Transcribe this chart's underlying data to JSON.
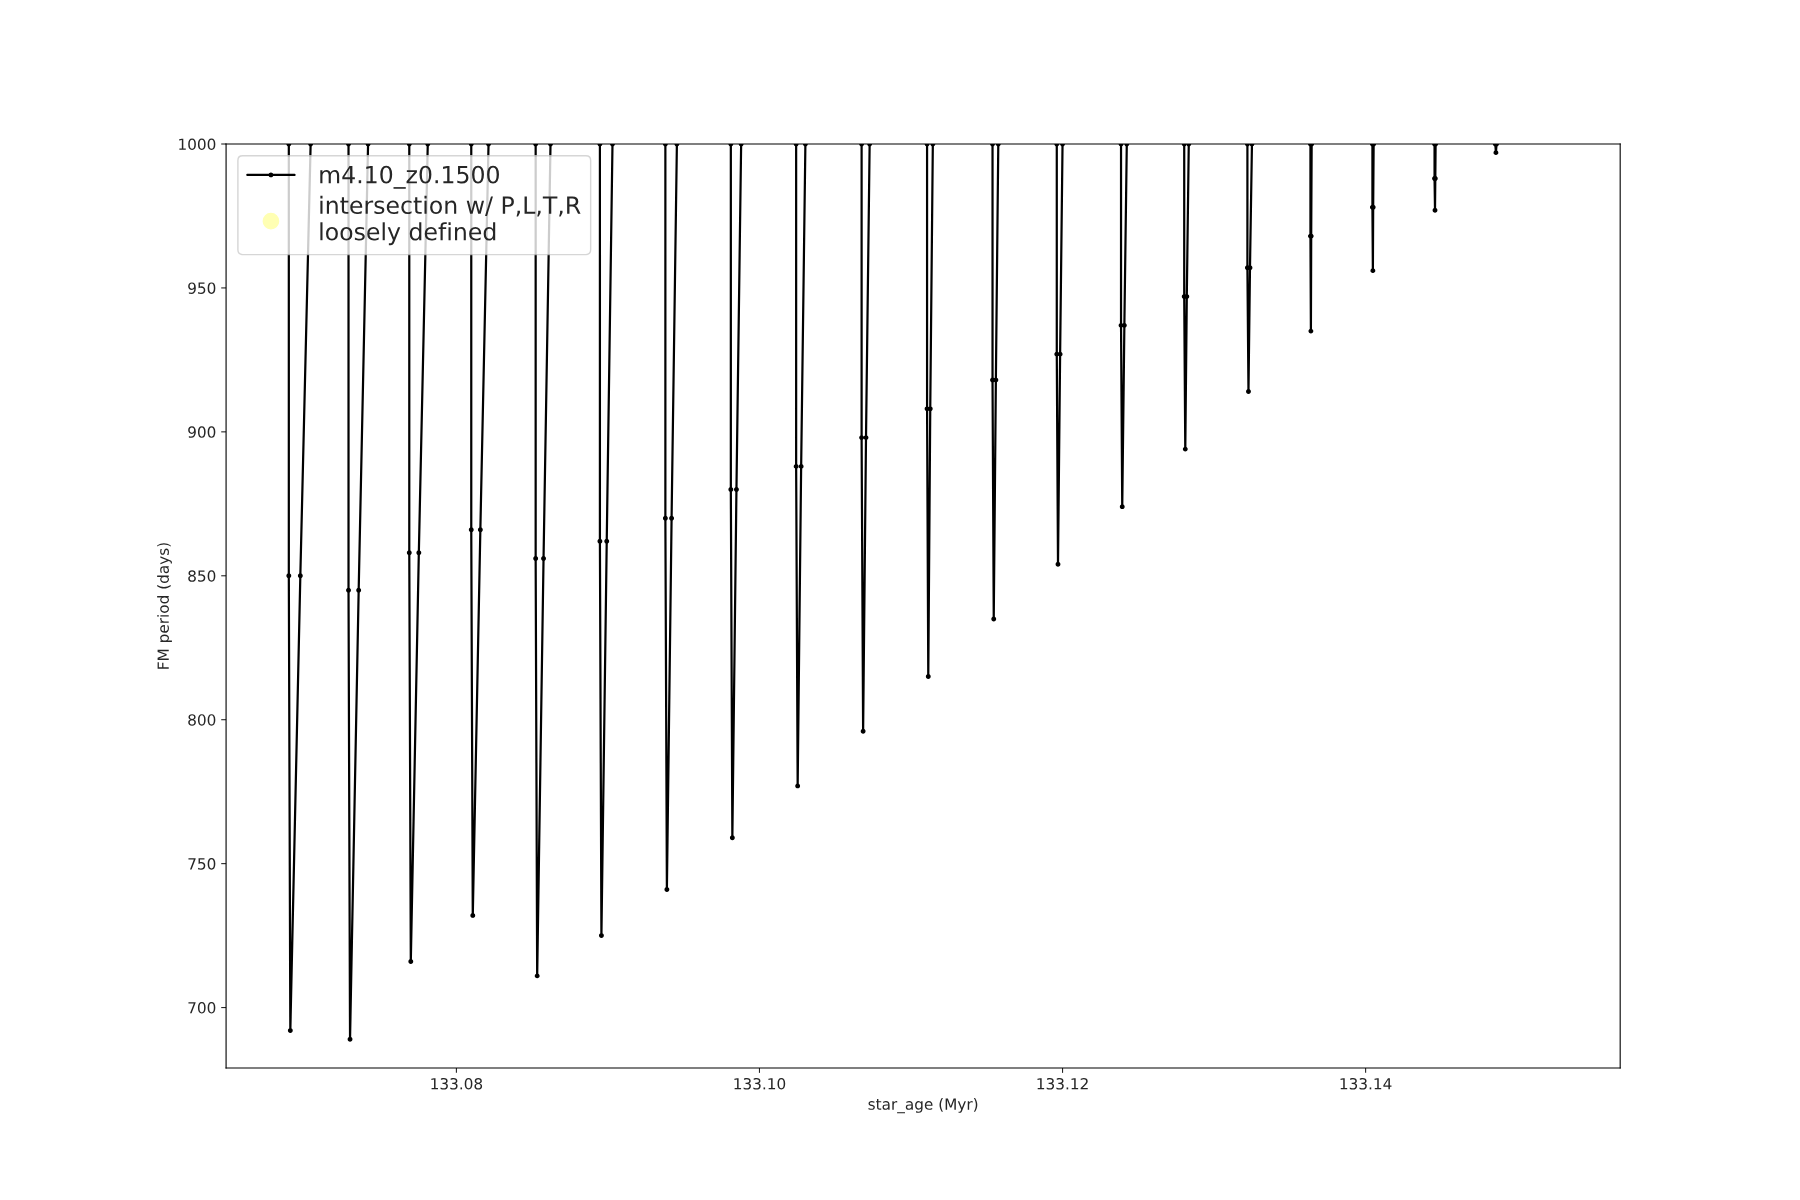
{
  "chart_data": {
    "type": "line",
    "xlabel": "star_age (Myr)",
    "ylabel": "FM period (days)",
    "xlim": [
      133.0648,
      133.1568
    ],
    "ylim": [
      679,
      1000
    ],
    "xticks": [
      133.08,
      {
        "value": 133.1,
        "label": "133.10"
      },
      133.12,
      133.14
    ],
    "yticks": [
      700,
      750,
      800,
      850,
      900,
      950,
      1000
    ],
    "grid": false,
    "legend": "top left",
    "marker": "circle",
    "line_style": "solid",
    "series": [
      {
        "name": "m4.10_z0.1500",
        "color": "#000000",
        "x": [
          133.06894,
          133.06894,
          133.06904,
          133.0697,
          133.07038,
          null,
          133.07288,
          133.07288,
          133.07298,
          133.07355,
          133.07417,
          null,
          133.07689,
          133.07689,
          133.07699,
          133.07752,
          133.07811,
          null,
          133.08098,
          133.08098,
          133.08108,
          133.08158,
          133.08212,
          null,
          133.08523,
          133.08523,
          133.08533,
          133.08575,
          133.08621,
          null,
          133.08947,
          133.08947,
          133.08957,
          133.08992,
          133.0903,
          null,
          133.09379,
          133.09379,
          133.09389,
          133.0942,
          133.09455,
          null,
          133.09811,
          133.09811,
          133.09821,
          133.09848,
          133.09879,
          null,
          133.10242,
          133.10242,
          133.10252,
          133.10275,
          133.10303,
          null,
          133.10674,
          133.10674,
          133.10684,
          133.10703,
          133.10727,
          null,
          133.11106,
          133.11106,
          133.11114,
          133.11127,
          133.11144,
          null,
          133.11538,
          133.11538,
          133.11546,
          133.1156,
          133.11576,
          null,
          133.11962,
          133.11962,
          133.1197,
          133.11984,
          133.12,
          null,
          133.12386,
          133.12386,
          133.12394,
          133.12408,
          133.12424,
          null,
          133.12803,
          133.12803,
          133.1281,
          133.1282,
          133.12833,
          null,
          133.1322,
          133.1322,
          133.13227,
          133.13237,
          133.1325,
          null,
          133.13636,
          133.13636,
          133.13639,
          133.13641,
          133.13644,
          null,
          133.14045,
          133.14045,
          133.14048,
          133.1405,
          133.14053,
          null,
          133.14455,
          133.14455,
          133.14458,
          133.1446,
          133.14462,
          null,
          133.14856,
          133.1486,
          133.14864
        ],
        "values": [
          1000,
          850,
          692,
          850,
          1000,
          null,
          1000,
          845,
          689,
          845,
          1000,
          null,
          1000,
          858,
          716,
          858,
          1000,
          null,
          1000,
          866,
          732,
          866,
          1000,
          null,
          1000,
          856,
          711,
          856,
          1000,
          null,
          1000,
          862,
          725,
          862,
          1000,
          null,
          1000,
          870,
          741,
          870,
          1000,
          null,
          1000,
          880,
          759,
          880,
          1000,
          null,
          1000,
          888,
          777,
          888,
          1000,
          null,
          1000,
          898,
          796,
          898,
          1000,
          null,
          1000,
          908,
          815,
          908,
          1000,
          null,
          1000,
          918,
          835,
          918,
          1000,
          null,
          1000,
          927,
          854,
          927,
          1000,
          null,
          1000,
          937,
          874,
          937,
          1000,
          null,
          1000,
          947,
          894,
          947,
          1000,
          null,
          1000,
          957,
          914,
          957,
          1000,
          null,
          1000,
          968,
          935,
          968,
          1000,
          null,
          1000,
          978,
          956,
          978,
          1000,
          null,
          1000,
          988,
          977,
          988,
          1000,
          null,
          1000,
          997,
          1000
        ]
      },
      {
        "name": "intersection w/ P,L,T,R\nloosely defined",
        "color": "#ffffb3",
        "type": "scatter"
      }
    ]
  }
}
